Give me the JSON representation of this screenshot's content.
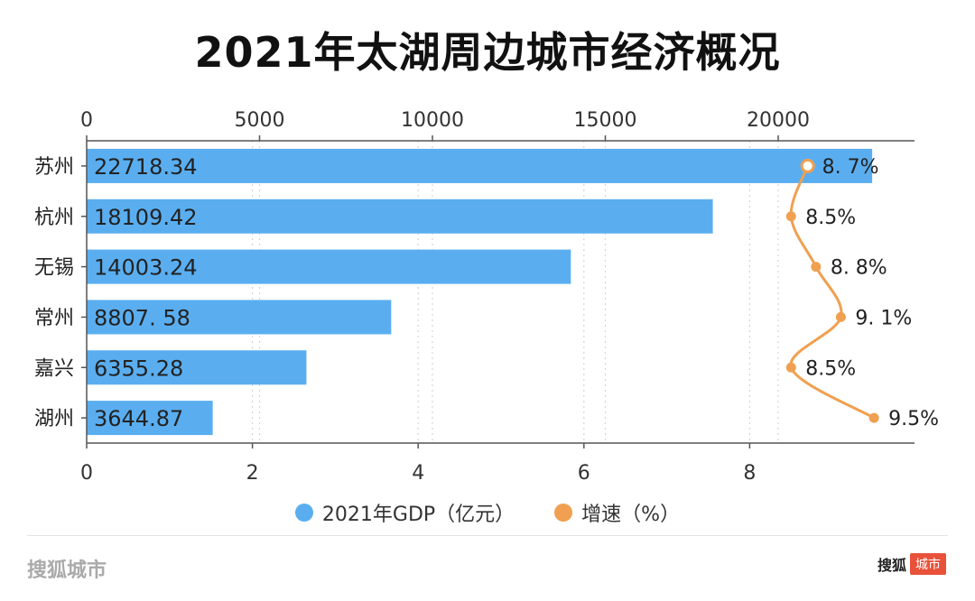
{
  "chart_data": {
    "type": "bar",
    "title": "2021年太湖周边城市经济概况",
    "categories": [
      "苏州",
      "杭州",
      "无锡",
      "常州",
      "嘉兴",
      "湖州"
    ],
    "series": [
      {
        "name": "2021年GDP（亿元）",
        "type": "bar",
        "axis": "top",
        "values": [
          22718.34,
          18109.42,
          14003.24,
          8807.58,
          6355.28,
          3644.87
        ],
        "labels": [
          "22718.34",
          "18109.42",
          "14003.24",
          "8807. 58",
          "6355.28",
          "3644.87"
        ],
        "color": "#5aaef0"
      },
      {
        "name": "增速（%）",
        "type": "line",
        "axis": "bottom",
        "values": [
          8.7,
          8.5,
          8.8,
          9.1,
          8.5,
          9.5
        ],
        "labels": [
          "8. 7%",
          "8.5%",
          "8. 8%",
          "9. 1%",
          "8.5%",
          "9.5%"
        ],
        "color": "#f0a050"
      }
    ],
    "top_axis": {
      "ticks": [
        "0",
        "5000",
        "10000",
        "15000",
        "20000"
      ],
      "range": [
        0,
        24000
      ]
    },
    "bottom_axis": {
      "ticks": [
        "0",
        "2",
        "4",
        "6",
        "8"
      ],
      "range": [
        0,
        10
      ]
    },
    "legend_position": "bottom",
    "grid": "vertical-dotted"
  },
  "footer": {
    "brand_left": "搜狐城市",
    "brand_right": "搜狐",
    "brand_badge": "城市"
  }
}
